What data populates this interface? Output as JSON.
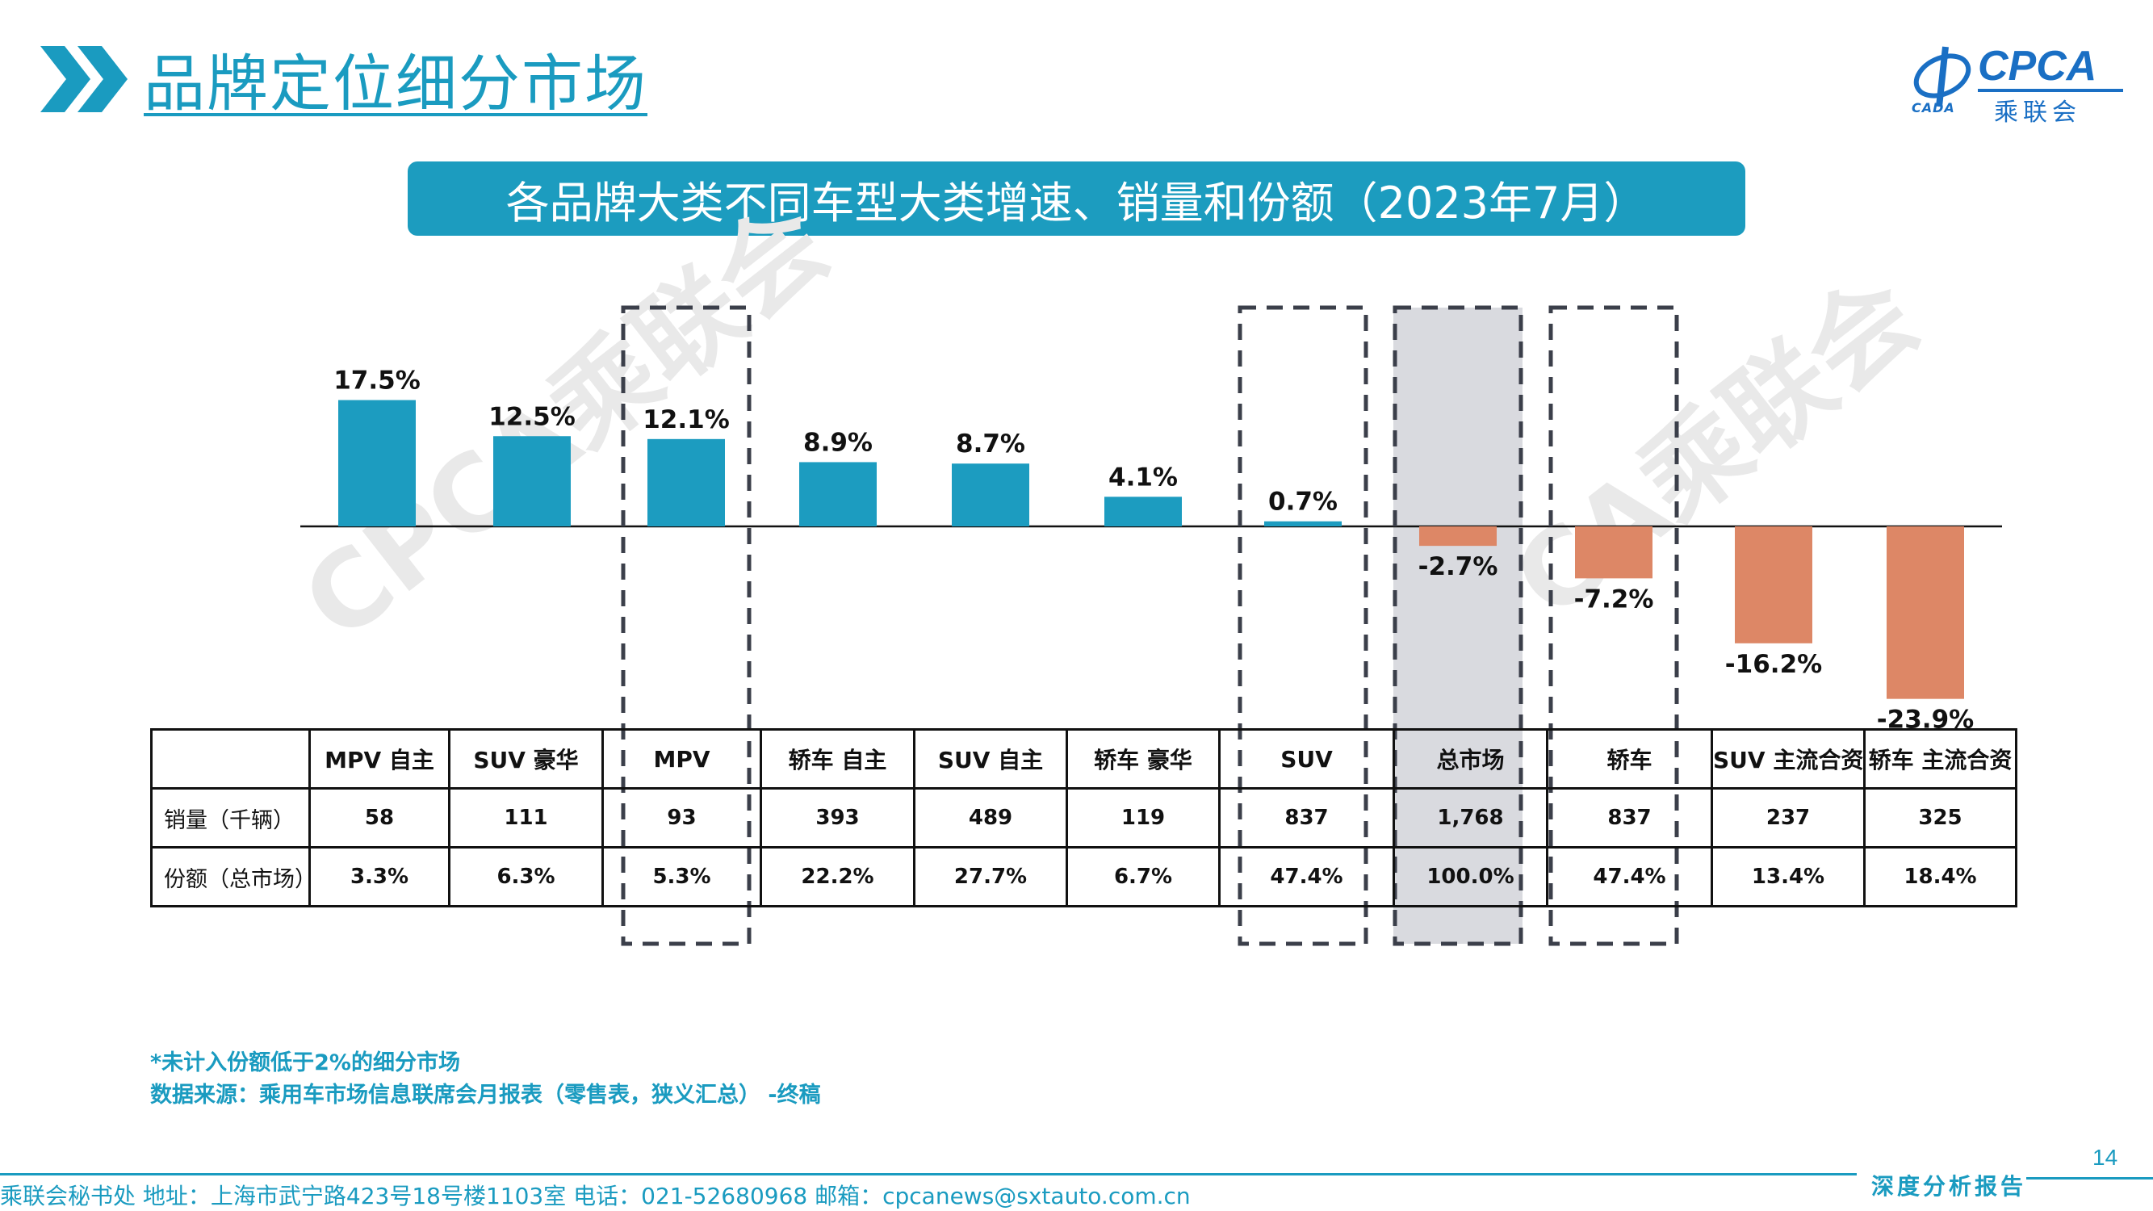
{
  "header": {
    "title": "品牌定位细分市场",
    "subtitle": "各品牌大类不同车型大类增速、销量和份额（2023年7月）"
  },
  "logo": {
    "text_en": "CPCA",
    "text_cn": "乘联会",
    "text_small": "CADA"
  },
  "watermark": "CPCA乘联会",
  "chart_data": {
    "type": "bar",
    "categories": [
      "MPV 自主",
      "SUV 豪华",
      "MPV",
      "轿车 自主",
      "SUV 自主",
      "轿车 豪华",
      "SUV",
      "总市场",
      "轿车",
      "SUV 主流合资",
      "轿车 主流合资"
    ],
    "values": [
      17.5,
      12.5,
      12.1,
      8.9,
      8.7,
      4.1,
      0.7,
      -2.7,
      -7.2,
      -16.2,
      -23.9
    ],
    "value_labels": [
      "17.5%",
      "12.5%",
      "12.1%",
      "8.9%",
      "8.7%",
      "4.1%",
      "0.7%",
      "-2.7%",
      "-7.2%",
      "-16.2%",
      "-23.9%"
    ],
    "positive_color": "#1c9cc0",
    "negative_color": "#dd8766",
    "highlighted_categories": [
      "MPV",
      "SUV",
      "总市场",
      "轿车"
    ],
    "shaded_category": "总市场"
  },
  "table": {
    "rows": [
      {
        "label": "销量（千辆）",
        "values": [
          "58",
          "111",
          "93",
          "393",
          "489",
          "119",
          "837",
          "1,768",
          "837",
          "237",
          "325"
        ]
      },
      {
        "label": "份额（总市场）",
        "values": [
          "3.3%",
          "6.3%",
          "5.3%",
          "22.2%",
          "27.7%",
          "6.7%",
          "47.4%",
          "100.0%",
          "47.4%",
          "13.4%",
          "18.4%"
        ]
      }
    ]
  },
  "notes": [
    "*未计入份额低于2%的细分市场",
    "数据来源：乘用车市场信息联席会月报表（零售表，狭义汇总） -终稿"
  ],
  "footer": {
    "text": "乘联会秘书处   地址：上海市武宁路423号18号楼1103室  电话：021-52680968   邮箱：cpcanews@sxtauto.com.cn",
    "page_number": "14",
    "report_label": "深度分析报告"
  },
  "colors": {
    "accent": "#1a9bc0",
    "banner": "#1c9cbf"
  }
}
